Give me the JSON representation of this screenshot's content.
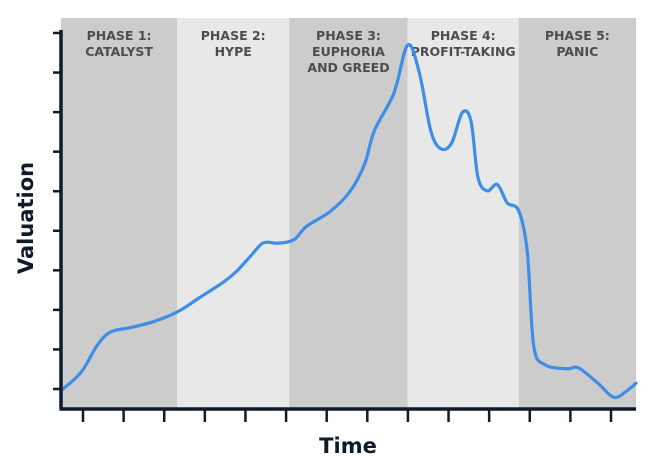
{
  "chart_data": {
    "type": "line",
    "xlabel": "Time",
    "ylabel": "Valuation",
    "x_range": [
      0,
      100
    ],
    "y_range": [
      0,
      100
    ],
    "grid": false,
    "line_color": "#3c8ee6",
    "axis_color": "#111a2b",
    "phases": [
      {
        "label_lines": [
          "PHASE 1:",
          "CATALYST"
        ],
        "x_start": 0,
        "x_end": 20.2,
        "color": "#cccccc"
      },
      {
        "label_lines": [
          "PHASE 2:",
          "HYPE"
        ],
        "x_start": 20.2,
        "x_end": 39.7,
        "color": "#e8e8e8"
      },
      {
        "label_lines": [
          "PHASE 3:",
          "EUPHORIA",
          "AND GREED"
        ],
        "x_start": 39.7,
        "x_end": 60.3,
        "color": "#cccccc"
      },
      {
        "label_lines": [
          "PHASE 4:",
          "PROFIT-TAKING"
        ],
        "x_start": 60.3,
        "x_end": 79.6,
        "color": "#e8e8e8"
      },
      {
        "label_lines": [
          "PHASE 5:",
          "PANIC"
        ],
        "x_start": 79.6,
        "x_end": 100,
        "color": "#cccccc"
      }
    ],
    "y_tick_count": 10,
    "x_tick_count": 14,
    "series": [
      {
        "points": [
          [
            0,
            4.7
          ],
          [
            3.5,
            9.4
          ],
          [
            6.3,
            16.3
          ],
          [
            8.6,
            19.7
          ],
          [
            12,
            20.8
          ],
          [
            16,
            22.3
          ],
          [
            20.2,
            24.8
          ],
          [
            24,
            28.4
          ],
          [
            28.3,
            32.5
          ],
          [
            30.6,
            35.3
          ],
          [
            33.1,
            39.3
          ],
          [
            35.2,
            42.5
          ],
          [
            37.8,
            42.4
          ],
          [
            40.5,
            43.3
          ],
          [
            42.7,
            46.7
          ],
          [
            46.8,
            50.5
          ],
          [
            50.2,
            55.5
          ],
          [
            52.8,
            62.6
          ],
          [
            54.5,
            71.2
          ],
          [
            57.9,
            80.8
          ],
          [
            60.3,
            93.1
          ],
          [
            62.3,
            86.1
          ],
          [
            64.3,
            71.2
          ],
          [
            66,
            66.6
          ],
          [
            67.9,
            67.9
          ],
          [
            69.8,
            75.8
          ],
          [
            71.3,
            73.6
          ],
          [
            72.5,
            59.3
          ],
          [
            74.1,
            55.8
          ],
          [
            75.9,
            57.4
          ],
          [
            77.6,
            52.7
          ],
          [
            79.6,
            50.7
          ],
          [
            81.1,
            40.2
          ],
          [
            82.2,
            16.2
          ],
          [
            84.2,
            11.3
          ],
          [
            88,
            10.3
          ],
          [
            90,
            10.5
          ],
          [
            93.3,
            6.7
          ],
          [
            96.1,
            3.0
          ],
          [
            98.2,
            4.4
          ],
          [
            100,
            6.6
          ]
        ]
      }
    ]
  }
}
